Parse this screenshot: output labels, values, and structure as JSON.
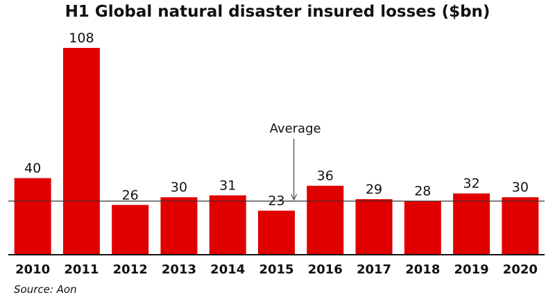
{
  "title": "H1 Global natural disaster insured losses ($bn)",
  "source": "Source: Aon",
  "colors": {
    "bar": "#e00000",
    "axis": "#111111",
    "reference_line": "#333333"
  },
  "chart_data": {
    "type": "bar",
    "categories": [
      "2010",
      "2011",
      "2012",
      "2013",
      "2014",
      "2015",
      "2016",
      "2017",
      "2018",
      "2019",
      "2020"
    ],
    "values": [
      40,
      108,
      26,
      30,
      31,
      23,
      36,
      29,
      28,
      32,
      30
    ],
    "title": "H1 Global natural disaster insured losses ($bn)",
    "xlabel": "",
    "ylabel": "",
    "ylim": [
      0,
      110
    ],
    "grid": false,
    "legend": "none",
    "reference_line": {
      "label": "Average",
      "value": 28
    },
    "annotations": [
      {
        "text": "Average",
        "points_to": "reference_line",
        "near_category": "2015"
      }
    ]
  }
}
